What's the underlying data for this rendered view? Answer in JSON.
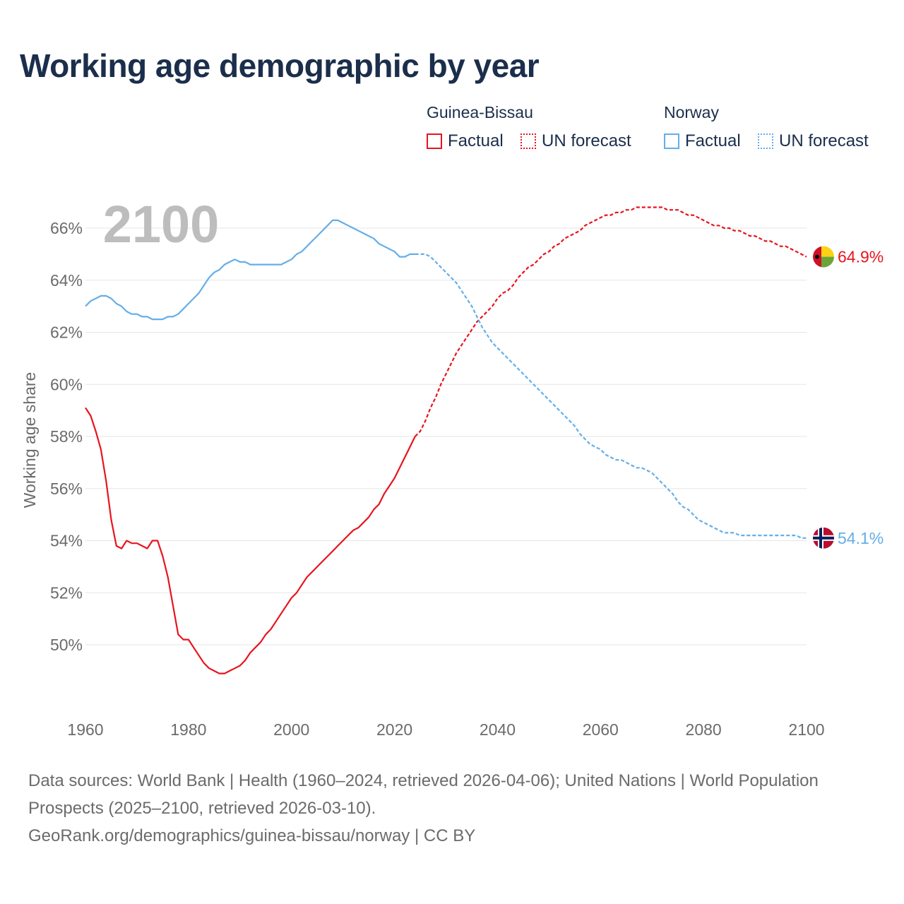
{
  "colors": {
    "guinea_bissau": "#e8141e",
    "norway": "#65aee8",
    "title": "#1b2e4b",
    "grid": "#e6e6e6",
    "axis_text": "#6b6b6b",
    "year_watermark": "#bdbdbd"
  },
  "title": "Working age demographic by year",
  "legend": {
    "groups": [
      {
        "country": "Guinea-Bissau",
        "factual_label": "Factual",
        "forecast_label": "UN forecast"
      },
      {
        "country": "Norway",
        "factual_label": "Factual",
        "forecast_label": "UN forecast"
      }
    ]
  },
  "footer": {
    "sources": "Data sources: World Bank | Health (1960–2024, retrieved 2026-04-06); United Nations | World Population Prospects (2025–2100, retrieved 2026-03-10).",
    "link": "GeoRank.org/demographics/guinea-bissau/norway | CC BY"
  },
  "chart_data": {
    "type": "line",
    "title": "Working age demographic by year",
    "ylabel": "Working age share",
    "xlabel": "",
    "year_watermark": "2100",
    "xlim": [
      1960,
      2100
    ],
    "ylim": [
      48,
      67
    ],
    "x_ticks": [
      "1960",
      "1980",
      "2000",
      "2020",
      "2040",
      "2060",
      "2080",
      "2100"
    ],
    "x_tick_values": [
      1960,
      1980,
      2000,
      2020,
      2040,
      2060,
      2080,
      2100
    ],
    "y_ticks": [
      "50%",
      "52%",
      "54%",
      "56%",
      "58%",
      "60%",
      "62%",
      "64%",
      "66%"
    ],
    "y_tick_values": [
      50,
      52,
      54,
      56,
      58,
      60,
      62,
      64,
      66
    ],
    "factual_end_year": 2024,
    "series": [
      {
        "name": "Guinea-Bissau",
        "color": "#e8141e",
        "end_label": "64.9%",
        "points": [
          [
            1960,
            59.1
          ],
          [
            1961,
            58.8
          ],
          [
            1962,
            58.2
          ],
          [
            1963,
            57.5
          ],
          [
            1964,
            56.3
          ],
          [
            1965,
            54.8
          ],
          [
            1966,
            53.8
          ],
          [
            1967,
            53.7
          ],
          [
            1968,
            54.0
          ],
          [
            1969,
            53.9
          ],
          [
            1970,
            53.9
          ],
          [
            1971,
            53.8
          ],
          [
            1972,
            53.7
          ],
          [
            1973,
            54.0
          ],
          [
            1974,
            54.0
          ],
          [
            1975,
            53.4
          ],
          [
            1976,
            52.6
          ],
          [
            1977,
            51.5
          ],
          [
            1978,
            50.4
          ],
          [
            1979,
            50.2
          ],
          [
            1980,
            50.2
          ],
          [
            1981,
            49.9
          ],
          [
            1982,
            49.6
          ],
          [
            1983,
            49.3
          ],
          [
            1984,
            49.1
          ],
          [
            1985,
            49.0
          ],
          [
            1986,
            48.9
          ],
          [
            1987,
            48.9
          ],
          [
            1988,
            49.0
          ],
          [
            1989,
            49.1
          ],
          [
            1990,
            49.2
          ],
          [
            1991,
            49.4
          ],
          [
            1992,
            49.7
          ],
          [
            1993,
            49.9
          ],
          [
            1994,
            50.1
          ],
          [
            1995,
            50.4
          ],
          [
            1996,
            50.6
          ],
          [
            1997,
            50.9
          ],
          [
            1998,
            51.2
          ],
          [
            1999,
            51.5
          ],
          [
            2000,
            51.8
          ],
          [
            2001,
            52.0
          ],
          [
            2002,
            52.3
          ],
          [
            2003,
            52.6
          ],
          [
            2004,
            52.8
          ],
          [
            2005,
            53.0
          ],
          [
            2006,
            53.2
          ],
          [
            2007,
            53.4
          ],
          [
            2008,
            53.6
          ],
          [
            2009,
            53.8
          ],
          [
            2010,
            54.0
          ],
          [
            2011,
            54.2
          ],
          [
            2012,
            54.4
          ],
          [
            2013,
            54.5
          ],
          [
            2014,
            54.7
          ],
          [
            2015,
            54.9
          ],
          [
            2016,
            55.2
          ],
          [
            2017,
            55.4
          ],
          [
            2018,
            55.8
          ],
          [
            2019,
            56.1
          ],
          [
            2020,
            56.4
          ],
          [
            2021,
            56.8
          ],
          [
            2022,
            57.2
          ],
          [
            2023,
            57.6
          ],
          [
            2024,
            58.0
          ],
          [
            2025,
            58.2
          ],
          [
            2026,
            58.6
          ],
          [
            2027,
            59.1
          ],
          [
            2028,
            59.5
          ],
          [
            2029,
            60.0
          ],
          [
            2030,
            60.4
          ],
          [
            2031,
            60.8
          ],
          [
            2032,
            61.2
          ],
          [
            2033,
            61.5
          ],
          [
            2034,
            61.8
          ],
          [
            2035,
            62.1
          ],
          [
            2036,
            62.4
          ],
          [
            2037,
            62.6
          ],
          [
            2038,
            62.8
          ],
          [
            2039,
            63.0
          ],
          [
            2040,
            63.3
          ],
          [
            2041,
            63.5
          ],
          [
            2042,
            63.6
          ],
          [
            2043,
            63.8
          ],
          [
            2044,
            64.1
          ],
          [
            2045,
            64.3
          ],
          [
            2046,
            64.5
          ],
          [
            2047,
            64.6
          ],
          [
            2048,
            64.8
          ],
          [
            2049,
            65.0
          ],
          [
            2050,
            65.1
          ],
          [
            2051,
            65.3
          ],
          [
            2052,
            65.4
          ],
          [
            2053,
            65.6
          ],
          [
            2054,
            65.7
          ],
          [
            2055,
            65.8
          ],
          [
            2056,
            65.9
          ],
          [
            2057,
            66.1
          ],
          [
            2058,
            66.2
          ],
          [
            2059,
            66.3
          ],
          [
            2060,
            66.4
          ],
          [
            2061,
            66.5
          ],
          [
            2062,
            66.5
          ],
          [
            2063,
            66.6
          ],
          [
            2064,
            66.6
          ],
          [
            2065,
            66.7
          ],
          [
            2066,
            66.7
          ],
          [
            2067,
            66.8
          ],
          [
            2068,
            66.8
          ],
          [
            2069,
            66.8
          ],
          [
            2070,
            66.8
          ],
          [
            2071,
            66.8
          ],
          [
            2072,
            66.8
          ],
          [
            2073,
            66.7
          ],
          [
            2074,
            66.7
          ],
          [
            2075,
            66.7
          ],
          [
            2076,
            66.6
          ],
          [
            2077,
            66.5
          ],
          [
            2078,
            66.5
          ],
          [
            2079,
            66.4
          ],
          [
            2080,
            66.3
          ],
          [
            2081,
            66.2
          ],
          [
            2082,
            66.1
          ],
          [
            2083,
            66.1
          ],
          [
            2084,
            66.0
          ],
          [
            2085,
            66.0
          ],
          [
            2086,
            65.9
          ],
          [
            2087,
            65.9
          ],
          [
            2088,
            65.8
          ],
          [
            2089,
            65.7
          ],
          [
            2090,
            65.7
          ],
          [
            2091,
            65.6
          ],
          [
            2092,
            65.5
          ],
          [
            2093,
            65.5
          ],
          [
            2094,
            65.4
          ],
          [
            2095,
            65.3
          ],
          [
            2096,
            65.3
          ],
          [
            2097,
            65.2
          ],
          [
            2098,
            65.1
          ],
          [
            2099,
            65.0
          ],
          [
            2100,
            64.9
          ]
        ]
      },
      {
        "name": "Norway",
        "color": "#65aee8",
        "end_label": "54.1%",
        "points": [
          [
            1960,
            63.0
          ],
          [
            1961,
            63.2
          ],
          [
            1962,
            63.3
          ],
          [
            1963,
            63.4
          ],
          [
            1964,
            63.4
          ],
          [
            1965,
            63.3
          ],
          [
            1966,
            63.1
          ],
          [
            1967,
            63.0
          ],
          [
            1968,
            62.8
          ],
          [
            1969,
            62.7
          ],
          [
            1970,
            62.7
          ],
          [
            1971,
            62.6
          ],
          [
            1972,
            62.6
          ],
          [
            1973,
            62.5
          ],
          [
            1974,
            62.5
          ],
          [
            1975,
            62.5
          ],
          [
            1976,
            62.6
          ],
          [
            1977,
            62.6
          ],
          [
            1978,
            62.7
          ],
          [
            1979,
            62.9
          ],
          [
            1980,
            63.1
          ],
          [
            1981,
            63.3
          ],
          [
            1982,
            63.5
          ],
          [
            1983,
            63.8
          ],
          [
            1984,
            64.1
          ],
          [
            1985,
            64.3
          ],
          [
            1986,
            64.4
          ],
          [
            1987,
            64.6
          ],
          [
            1988,
            64.7
          ],
          [
            1989,
            64.8
          ],
          [
            1990,
            64.7
          ],
          [
            1991,
            64.7
          ],
          [
            1992,
            64.6
          ],
          [
            1993,
            64.6
          ],
          [
            1994,
            64.6
          ],
          [
            1995,
            64.6
          ],
          [
            1996,
            64.6
          ],
          [
            1997,
            64.6
          ],
          [
            1998,
            64.6
          ],
          [
            1999,
            64.7
          ],
          [
            2000,
            64.8
          ],
          [
            2001,
            65.0
          ],
          [
            2002,
            65.1
          ],
          [
            2003,
            65.3
          ],
          [
            2004,
            65.5
          ],
          [
            2005,
            65.7
          ],
          [
            2006,
            65.9
          ],
          [
            2007,
            66.1
          ],
          [
            2008,
            66.3
          ],
          [
            2009,
            66.3
          ],
          [
            2010,
            66.2
          ],
          [
            2011,
            66.1
          ],
          [
            2012,
            66.0
          ],
          [
            2013,
            65.9
          ],
          [
            2014,
            65.8
          ],
          [
            2015,
            65.7
          ],
          [
            2016,
            65.6
          ],
          [
            2017,
            65.4
          ],
          [
            2018,
            65.3
          ],
          [
            2019,
            65.2
          ],
          [
            2020,
            65.1
          ],
          [
            2021,
            64.9
          ],
          [
            2022,
            64.9
          ],
          [
            2023,
            65.0
          ],
          [
            2024,
            65.0
          ],
          [
            2025,
            65.0
          ],
          [
            2026,
            65.0
          ],
          [
            2027,
            64.9
          ],
          [
            2028,
            64.7
          ],
          [
            2029,
            64.5
          ],
          [
            2030,
            64.3
          ],
          [
            2031,
            64.1
          ],
          [
            2032,
            63.9
          ],
          [
            2033,
            63.6
          ],
          [
            2034,
            63.3
          ],
          [
            2035,
            63.0
          ],
          [
            2036,
            62.6
          ],
          [
            2037,
            62.2
          ],
          [
            2038,
            61.9
          ],
          [
            2039,
            61.6
          ],
          [
            2040,
            61.4
          ],
          [
            2041,
            61.2
          ],
          [
            2042,
            61.0
          ],
          [
            2043,
            60.8
          ],
          [
            2044,
            60.6
          ],
          [
            2045,
            60.4
          ],
          [
            2046,
            60.2
          ],
          [
            2047,
            60.0
          ],
          [
            2048,
            59.8
          ],
          [
            2049,
            59.6
          ],
          [
            2050,
            59.4
          ],
          [
            2051,
            59.2
          ],
          [
            2052,
            59.0
          ],
          [
            2053,
            58.8
          ],
          [
            2054,
            58.6
          ],
          [
            2055,
            58.4
          ],
          [
            2056,
            58.1
          ],
          [
            2057,
            57.9
          ],
          [
            2058,
            57.7
          ],
          [
            2059,
            57.6
          ],
          [
            2060,
            57.5
          ],
          [
            2061,
            57.3
          ],
          [
            2062,
            57.2
          ],
          [
            2063,
            57.1
          ],
          [
            2064,
            57.1
          ],
          [
            2065,
            57.0
          ],
          [
            2066,
            56.9
          ],
          [
            2067,
            56.8
          ],
          [
            2068,
            56.8
          ],
          [
            2069,
            56.7
          ],
          [
            2070,
            56.6
          ],
          [
            2071,
            56.4
          ],
          [
            2072,
            56.2
          ],
          [
            2073,
            56.0
          ],
          [
            2074,
            55.8
          ],
          [
            2075,
            55.5
          ],
          [
            2076,
            55.3
          ],
          [
            2077,
            55.2
          ],
          [
            2078,
            55.0
          ],
          [
            2079,
            54.8
          ],
          [
            2080,
            54.7
          ],
          [
            2081,
            54.6
          ],
          [
            2082,
            54.5
          ],
          [
            2083,
            54.4
          ],
          [
            2084,
            54.3
          ],
          [
            2085,
            54.3
          ],
          [
            2086,
            54.3
          ],
          [
            2087,
            54.2
          ],
          [
            2088,
            54.2
          ],
          [
            2089,
            54.2
          ],
          [
            2090,
            54.2
          ],
          [
            2091,
            54.2
          ],
          [
            2092,
            54.2
          ],
          [
            2093,
            54.2
          ],
          [
            2094,
            54.2
          ],
          [
            2095,
            54.2
          ],
          [
            2096,
            54.2
          ],
          [
            2097,
            54.2
          ],
          [
            2098,
            54.2
          ],
          [
            2099,
            54.1
          ],
          [
            2100,
            54.1
          ]
        ]
      }
    ]
  }
}
